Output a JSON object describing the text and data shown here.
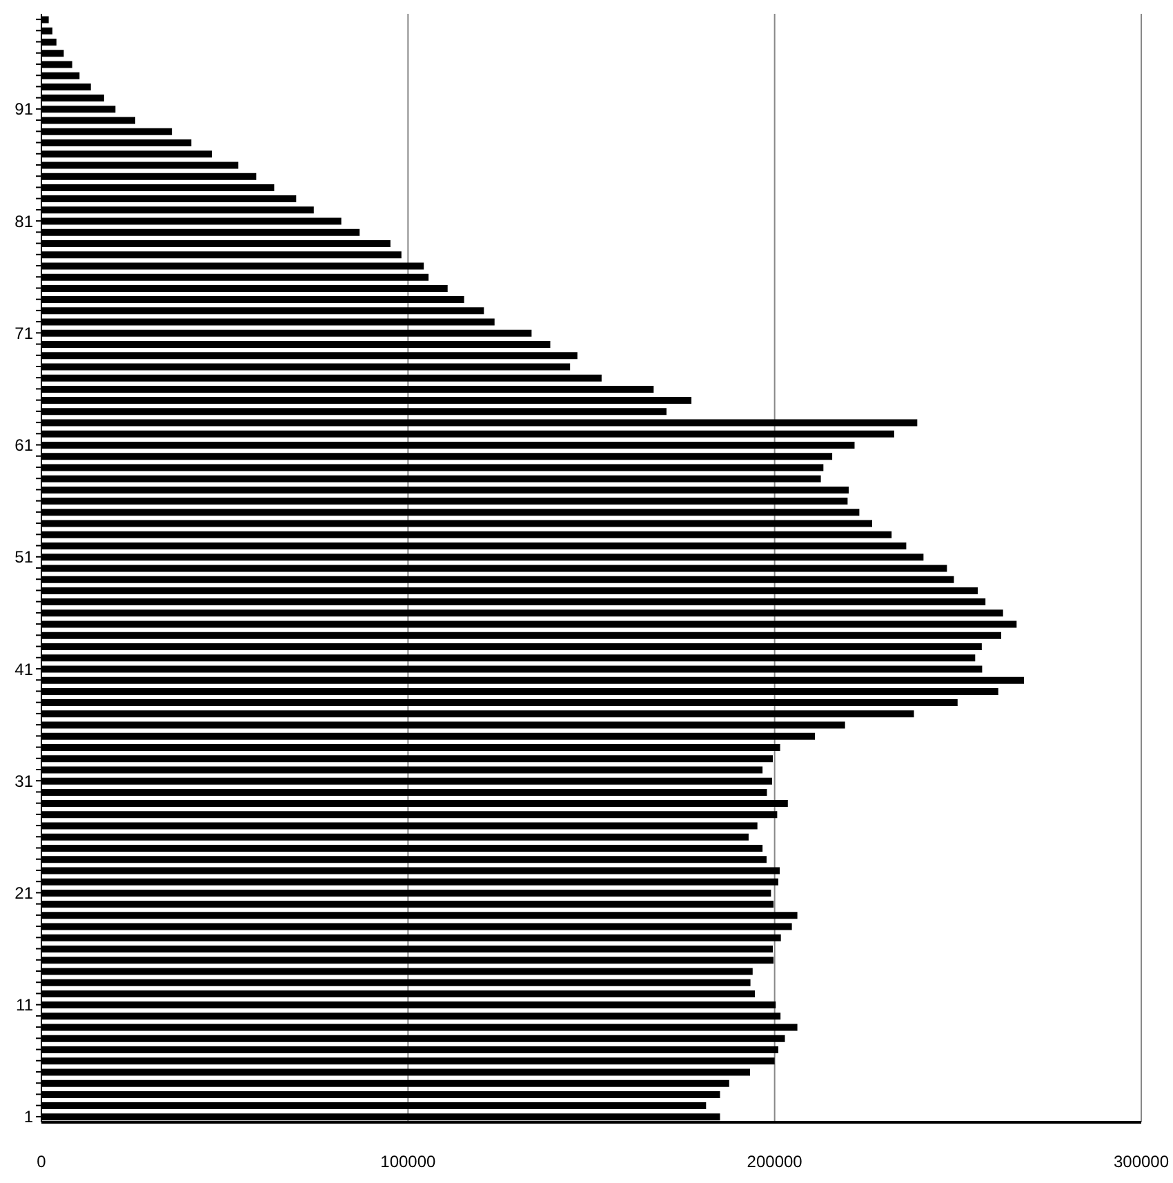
{
  "chart_data": {
    "type": "bar",
    "orientation": "horizontal",
    "categories": [
      null,
      null,
      null,
      null,
      null,
      null,
      null,
      null,
      "91",
      null,
      null,
      null,
      null,
      null,
      null,
      null,
      null,
      null,
      "81",
      null,
      null,
      null,
      null,
      null,
      null,
      null,
      null,
      null,
      "71",
      null,
      null,
      null,
      null,
      null,
      null,
      null,
      null,
      null,
      "61",
      null,
      null,
      null,
      null,
      null,
      null,
      null,
      null,
      null,
      "51",
      null,
      null,
      null,
      null,
      null,
      null,
      null,
      null,
      null,
      "41",
      null,
      null,
      null,
      null,
      null,
      null,
      null,
      null,
      null,
      "31",
      null,
      null,
      null,
      null,
      null,
      null,
      null,
      null,
      null,
      "21",
      null,
      null,
      null,
      null,
      null,
      null,
      null,
      null,
      null,
      "11",
      null,
      null,
      null,
      null,
      null,
      null,
      null,
      null,
      null,
      "1"
    ],
    "values": [
      2000,
      3000,
      4100,
      6100,
      8400,
      10400,
      13500,
      17100,
      20200,
      25600,
      35600,
      40900,
      46500,
      53700,
      58600,
      63500,
      69500,
      74300,
      81800,
      86800,
      95200,
      98200,
      104300,
      105600,
      110800,
      115300,
      120700,
      123600,
      133700,
      138800,
      146200,
      144200,
      152800,
      167000,
      177300,
      170500,
      238900,
      232600,
      221800,
      215700,
      213300,
      212600,
      220200,
      219900,
      223100,
      226600,
      231900,
      235900,
      240600,
      247000,
      248900,
      255400,
      257500,
      262300,
      266000,
      261800,
      256500,
      254700,
      256600,
      268000,
      261000,
      249900,
      238000,
      219200,
      211000,
      201500,
      199500,
      196700,
      199300,
      197900,
      203600,
      200700,
      195300,
      192900,
      196700,
      197800,
      201400,
      201000,
      199000,
      199700,
      206200,
      204700,
      201700,
      199500,
      199700,
      194000,
      193400,
      194600,
      200300,
      201600,
      206200,
      202800,
      201000,
      200000,
      193300,
      187600,
      185100,
      181300,
      185100
    ],
    "color": "#000000",
    "xlim": [
      0,
      300000
    ],
    "xticks": [
      0,
      100000,
      200000,
      300000
    ],
    "grid": "x"
  }
}
